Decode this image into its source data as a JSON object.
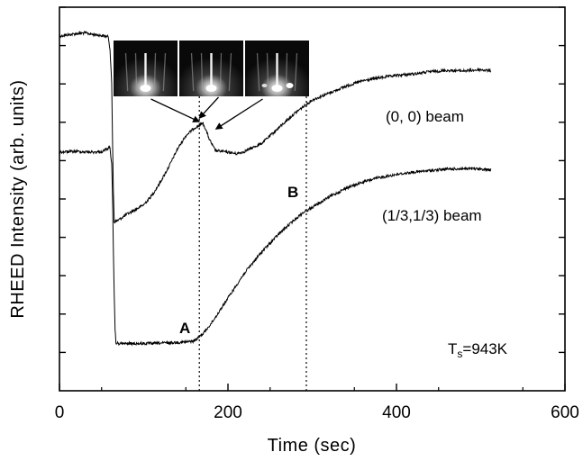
{
  "chart_data": {
    "type": "line",
    "xlabel": "Time (sec)",
    "ylabel": "RHEED Intensity (arb. units)",
    "xlim": [
      0,
      600
    ],
    "ylim": [
      0,
      100
    ],
    "x_ticks": [
      0,
      200,
      400,
      600
    ],
    "y_ticks_minor": [
      10,
      20,
      30,
      40,
      50,
      60,
      70,
      80,
      90,
      100
    ],
    "series": [
      {
        "name": "(0, 0) beam",
        "points": [
          [
            0,
            92.5
          ],
          [
            10,
            92.8
          ],
          [
            20,
            93.1
          ],
          [
            30,
            93.3
          ],
          [
            40,
            92.9
          ],
          [
            50,
            92.6
          ],
          [
            58,
            92.3
          ],
          [
            60,
            89
          ],
          [
            62,
            80
          ],
          [
            63,
            65
          ],
          [
            64,
            52
          ],
          [
            65,
            44
          ],
          [
            70,
            44.5
          ],
          [
            80,
            46
          ],
          [
            90,
            47.2
          ],
          [
            100,
            48.5
          ],
          [
            110,
            51
          ],
          [
            120,
            54.5
          ],
          [
            130,
            58.5
          ],
          [
            140,
            63
          ],
          [
            150,
            66.5
          ],
          [
            160,
            68.5
          ],
          [
            166,
            69.2
          ],
          [
            170,
            69.8
          ],
          [
            173,
            68.5
          ],
          [
            178,
            65.5
          ],
          [
            185,
            62.6
          ],
          [
            200,
            62.2
          ],
          [
            210,
            61.8
          ],
          [
            220,
            62.4
          ],
          [
            240,
            64.5
          ],
          [
            260,
            68.5
          ],
          [
            280,
            72.5
          ],
          [
            300,
            75.8
          ],
          [
            320,
            77.6
          ],
          [
            340,
            79.4
          ],
          [
            360,
            80.8
          ],
          [
            380,
            81.6
          ],
          [
            400,
            82.2
          ],
          [
            420,
            82.6
          ],
          [
            440,
            83.2
          ],
          [
            460,
            83.5
          ],
          [
            480,
            83.4
          ],
          [
            500,
            83.7
          ],
          [
            512,
            83.4
          ]
        ]
      },
      {
        "name": "(1/3,1/3) beam",
        "points": [
          [
            0,
            62.2
          ],
          [
            20,
            62.4
          ],
          [
            40,
            62.2
          ],
          [
            50,
            62.3
          ],
          [
            55,
            62.9
          ],
          [
            58,
            63.2
          ],
          [
            60,
            63.6
          ],
          [
            61,
            61
          ],
          [
            62,
            59
          ],
          [
            63,
            50
          ],
          [
            64,
            36
          ],
          [
            65,
            25
          ],
          [
            66,
            16
          ],
          [
            67,
            12.5
          ],
          [
            70,
            12.3
          ],
          [
            100,
            12.3
          ],
          [
            130,
            12.5
          ],
          [
            150,
            12.7
          ],
          [
            160,
            13
          ],
          [
            170,
            14.8
          ],
          [
            180,
            17.5
          ],
          [
            190,
            20.8
          ],
          [
            200,
            24.2
          ],
          [
            220,
            30.8
          ],
          [
            240,
            36.2
          ],
          [
            260,
            40.8
          ],
          [
            280,
            44.8
          ],
          [
            290,
            46.6
          ],
          [
            300,
            47.8
          ],
          [
            320,
            50.5
          ],
          [
            340,
            52.8
          ],
          [
            360,
            54.4
          ],
          [
            380,
            55.6
          ],
          [
            400,
            56.4
          ],
          [
            420,
            57
          ],
          [
            440,
            57.4
          ],
          [
            460,
            57.8
          ],
          [
            480,
            57.9
          ],
          [
            500,
            57.8
          ],
          [
            512,
            57.6
          ]
        ]
      }
    ],
    "vlines": [
      166,
      293
    ],
    "annotations": {
      "beam00": "(0, 0) beam",
      "beam13": "(1/3,1/3) beam",
      "point_a": "A",
      "point_b": "B",
      "temp_main": "T",
      "temp_sub": "s",
      "temp_value": "=943K"
    },
    "inset": {
      "panel_count": 3,
      "arrow_targets_sec": [
        166,
        166,
        175
      ]
    },
    "grid": false,
    "legend": "none"
  }
}
